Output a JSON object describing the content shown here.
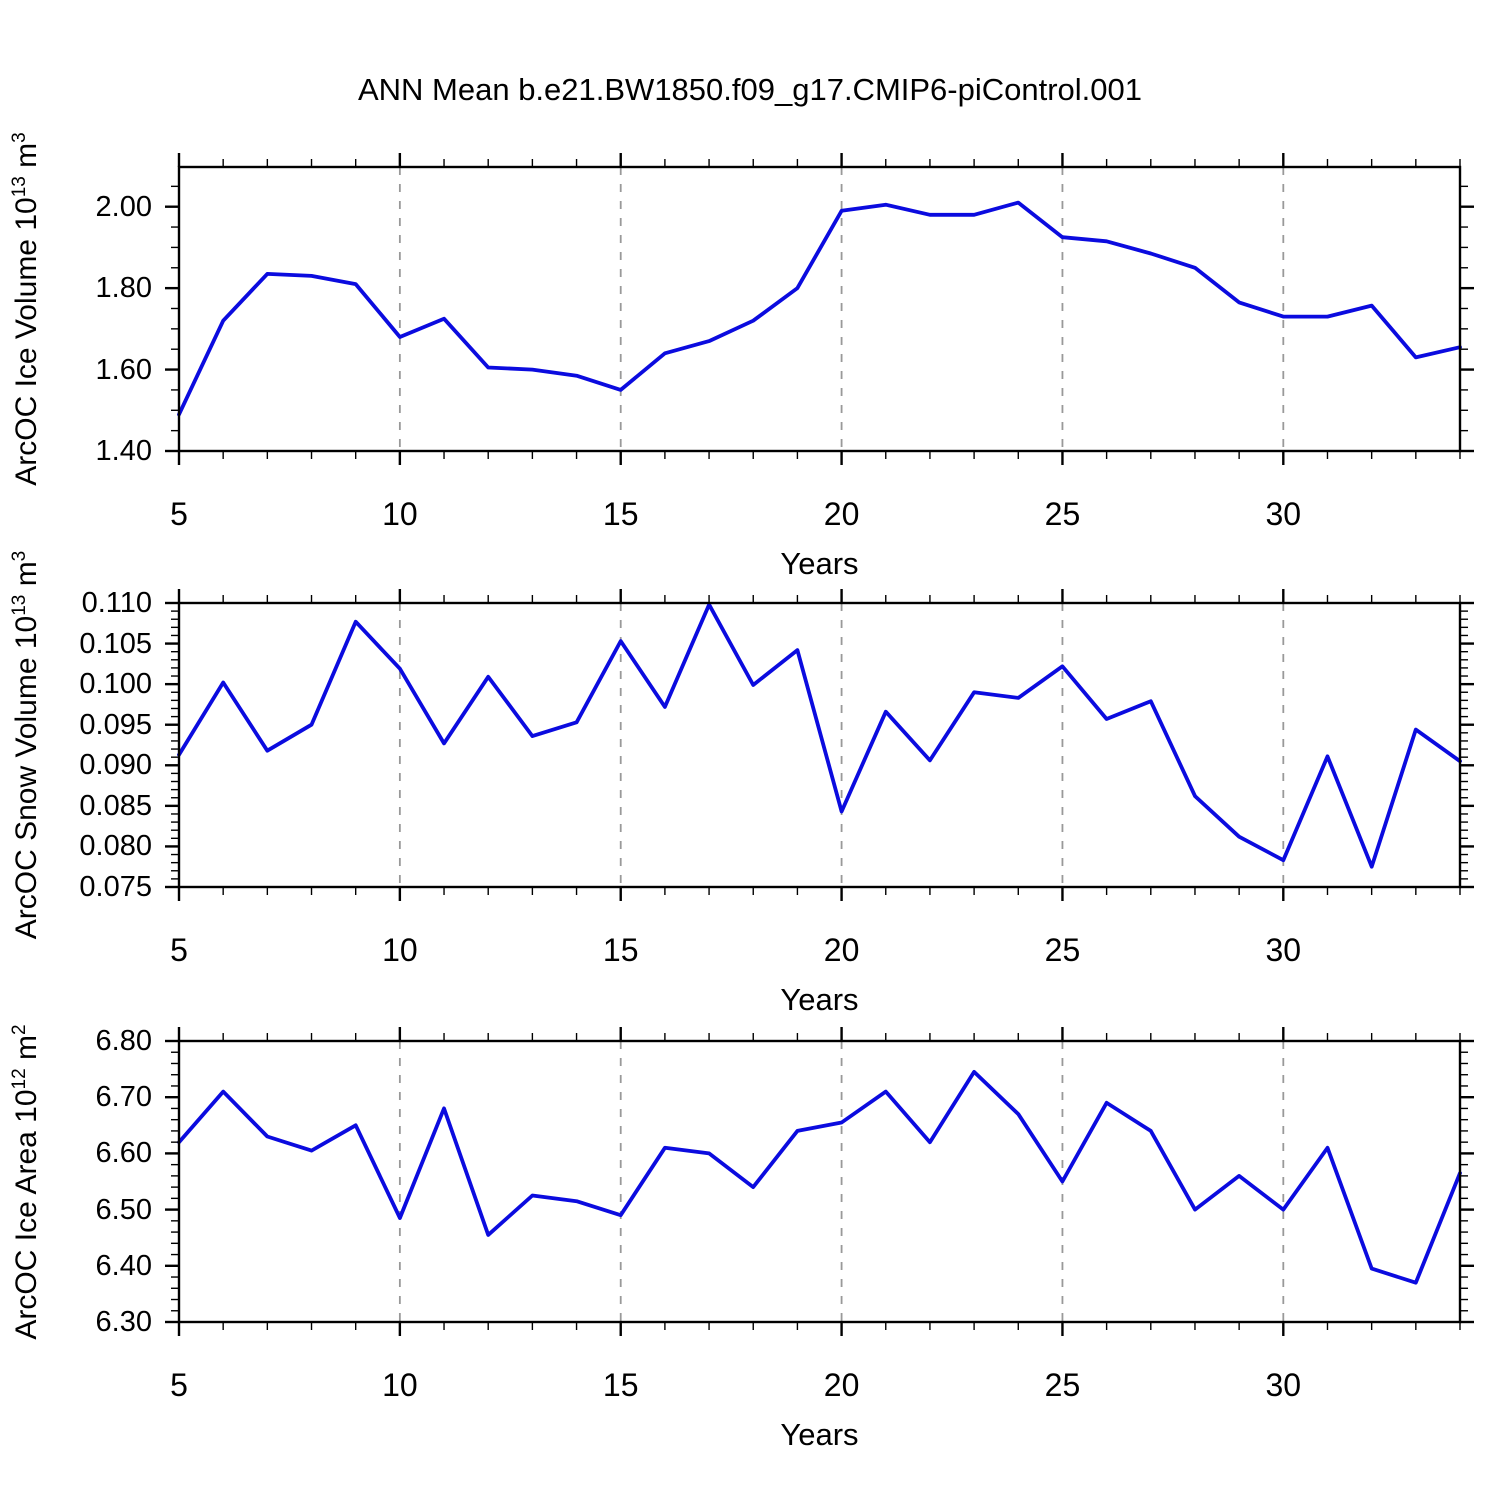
{
  "title": "ANN Mean b.e21.BW1850.f09_g17.CMIP6-piControl.001",
  "colors": {
    "line": "#0b0bdf",
    "grid": "#999999",
    "frame": "#000000",
    "text": "#000000",
    "background": "#ffffff"
  },
  "x_axis": {
    "label": "Years",
    "major_ticks": [
      5,
      10,
      15,
      20,
      25,
      30
    ],
    "minor_step": 1,
    "range": [
      5,
      34
    ],
    "gridlines": [
      10,
      15,
      20,
      25,
      30
    ]
  },
  "chart_data": [
    {
      "id": "ice-volume",
      "type": "line",
      "ylabel": "ArcOC Ice Volume 10^13 m^3",
      "ylabel_segments": [
        {
          "t": "ArcOC Ice Volume 10",
          "sup": false
        },
        {
          "t": "13",
          "sup": true
        },
        {
          "t": " m",
          "sup": false
        },
        {
          "t": "3",
          "sup": true
        }
      ],
      "xlabel": "Years",
      "xlim": [
        5,
        34
      ],
      "ylim": [
        1.4,
        2.0975
      ],
      "x": [
        5,
        6,
        7,
        8,
        9,
        10,
        11,
        12,
        13,
        14,
        15,
        16,
        17,
        18,
        19,
        20,
        21,
        22,
        23,
        24,
        25,
        26,
        27,
        28,
        29,
        30,
        31,
        32,
        33,
        34
      ],
      "values": [
        1.49,
        1.72,
        1.835,
        1.83,
        1.81,
        1.68,
        1.725,
        1.605,
        1.6,
        1.585,
        1.55,
        1.64,
        1.67,
        1.72,
        1.8,
        1.99,
        2.005,
        1.98,
        1.98,
        2.01,
        1.925,
        1.915,
        1.885,
        1.85,
        1.765,
        1.73,
        1.73,
        1.757,
        1.63,
        1.655
      ],
      "xticks": [
        5,
        10,
        15,
        20,
        25,
        30
      ],
      "xtick_labels": [
        "5",
        "10",
        "15",
        "20",
        "25",
        "30"
      ],
      "xminor_step": 1,
      "grid_x": [
        10,
        15,
        20,
        25,
        30
      ],
      "ytick_values": [
        1.4,
        1.6,
        1.8,
        2.0
      ],
      "ytick_labels": [
        "1.40",
        "1.60",
        "1.80",
        "2.00"
      ],
      "yminor_step": 0.05
    },
    {
      "id": "snow-volume",
      "type": "line",
      "ylabel": "ArcOC Snow Volume 10^13 m^3",
      "ylabel_segments": [
        {
          "t": "ArcOC Snow Volume 10",
          "sup": false
        },
        {
          "t": "13",
          "sup": true
        },
        {
          "t": " m",
          "sup": false
        },
        {
          "t": "3",
          "sup": true
        }
      ],
      "xlabel": "Years",
      "xlim": [
        5,
        34
      ],
      "ylim": [
        0.075,
        0.11
      ],
      "x": [
        5,
        6,
        7,
        8,
        9,
        10,
        11,
        12,
        13,
        14,
        15,
        16,
        17,
        18,
        19,
        20,
        21,
        22,
        23,
        24,
        25,
        26,
        27,
        28,
        29,
        30,
        31,
        32,
        33,
        34
      ],
      "values": [
        0.0913,
        0.1002,
        0.0918,
        0.095,
        0.1077,
        0.1019,
        0.0927,
        0.1009,
        0.0936,
        0.0953,
        0.1053,
        0.0972,
        0.1098,
        0.0999,
        0.1042,
        0.0843,
        0.0966,
        0.0906,
        0.099,
        0.0983,
        0.1022,
        0.0957,
        0.0979,
        0.0862,
        0.0812,
        0.0783,
        0.0911,
        0.0775,
        0.0944,
        0.0905
      ],
      "xticks": [
        5,
        10,
        15,
        20,
        25,
        30
      ],
      "xtick_labels": [
        "5",
        "10",
        "15",
        "20",
        "25",
        "30"
      ],
      "xminor_step": 1,
      "grid_x": [
        10,
        15,
        20,
        25,
        30
      ],
      "ytick_values": [
        0.075,
        0.08,
        0.085,
        0.09,
        0.095,
        0.1,
        0.105,
        0.11
      ],
      "ytick_labels": [
        "0.075",
        "0.080",
        "0.085",
        "0.090",
        "0.095",
        "0.100",
        "0.105",
        "0.110"
      ],
      "yminor_step": 0.001
    },
    {
      "id": "ice-area",
      "type": "line",
      "ylabel": "ArcOC Ice Area 10^12 m^2",
      "ylabel_segments": [
        {
          "t": "ArcOC Ice Area 10",
          "sup": false
        },
        {
          "t": "12",
          "sup": true
        },
        {
          "t": " m",
          "sup": false
        },
        {
          "t": "2",
          "sup": true
        }
      ],
      "xlabel": "Years",
      "xlim": [
        5,
        34
      ],
      "ylim": [
        6.3,
        6.8
      ],
      "x": [
        5,
        6,
        7,
        8,
        9,
        10,
        11,
        12,
        13,
        14,
        15,
        16,
        17,
        18,
        19,
        20,
        21,
        22,
        23,
        24,
        25,
        26,
        27,
        28,
        29,
        30,
        31,
        32,
        33,
        34
      ],
      "values": [
        6.62,
        6.71,
        6.63,
        6.605,
        6.65,
        6.485,
        6.68,
        6.455,
        6.525,
        6.515,
        6.49,
        6.61,
        6.6,
        6.54,
        6.64,
        6.655,
        6.71,
        6.62,
        6.745,
        6.67,
        6.55,
        6.69,
        6.64,
        6.5,
        6.56,
        6.5,
        6.61,
        6.395,
        6.37,
        6.565
      ],
      "xticks": [
        5,
        10,
        15,
        20,
        25,
        30
      ],
      "xtick_labels": [
        "5",
        "10",
        "15",
        "20",
        "25",
        "30"
      ],
      "xminor_step": 1,
      "grid_x": [
        10,
        15,
        20,
        25,
        30
      ],
      "ytick_values": [
        6.3,
        6.4,
        6.5,
        6.6,
        6.7,
        6.8
      ],
      "ytick_labels": [
        "6.30",
        "6.40",
        "6.50",
        "6.60",
        "6.70",
        "6.80"
      ],
      "yminor_step": 0.02
    }
  ]
}
